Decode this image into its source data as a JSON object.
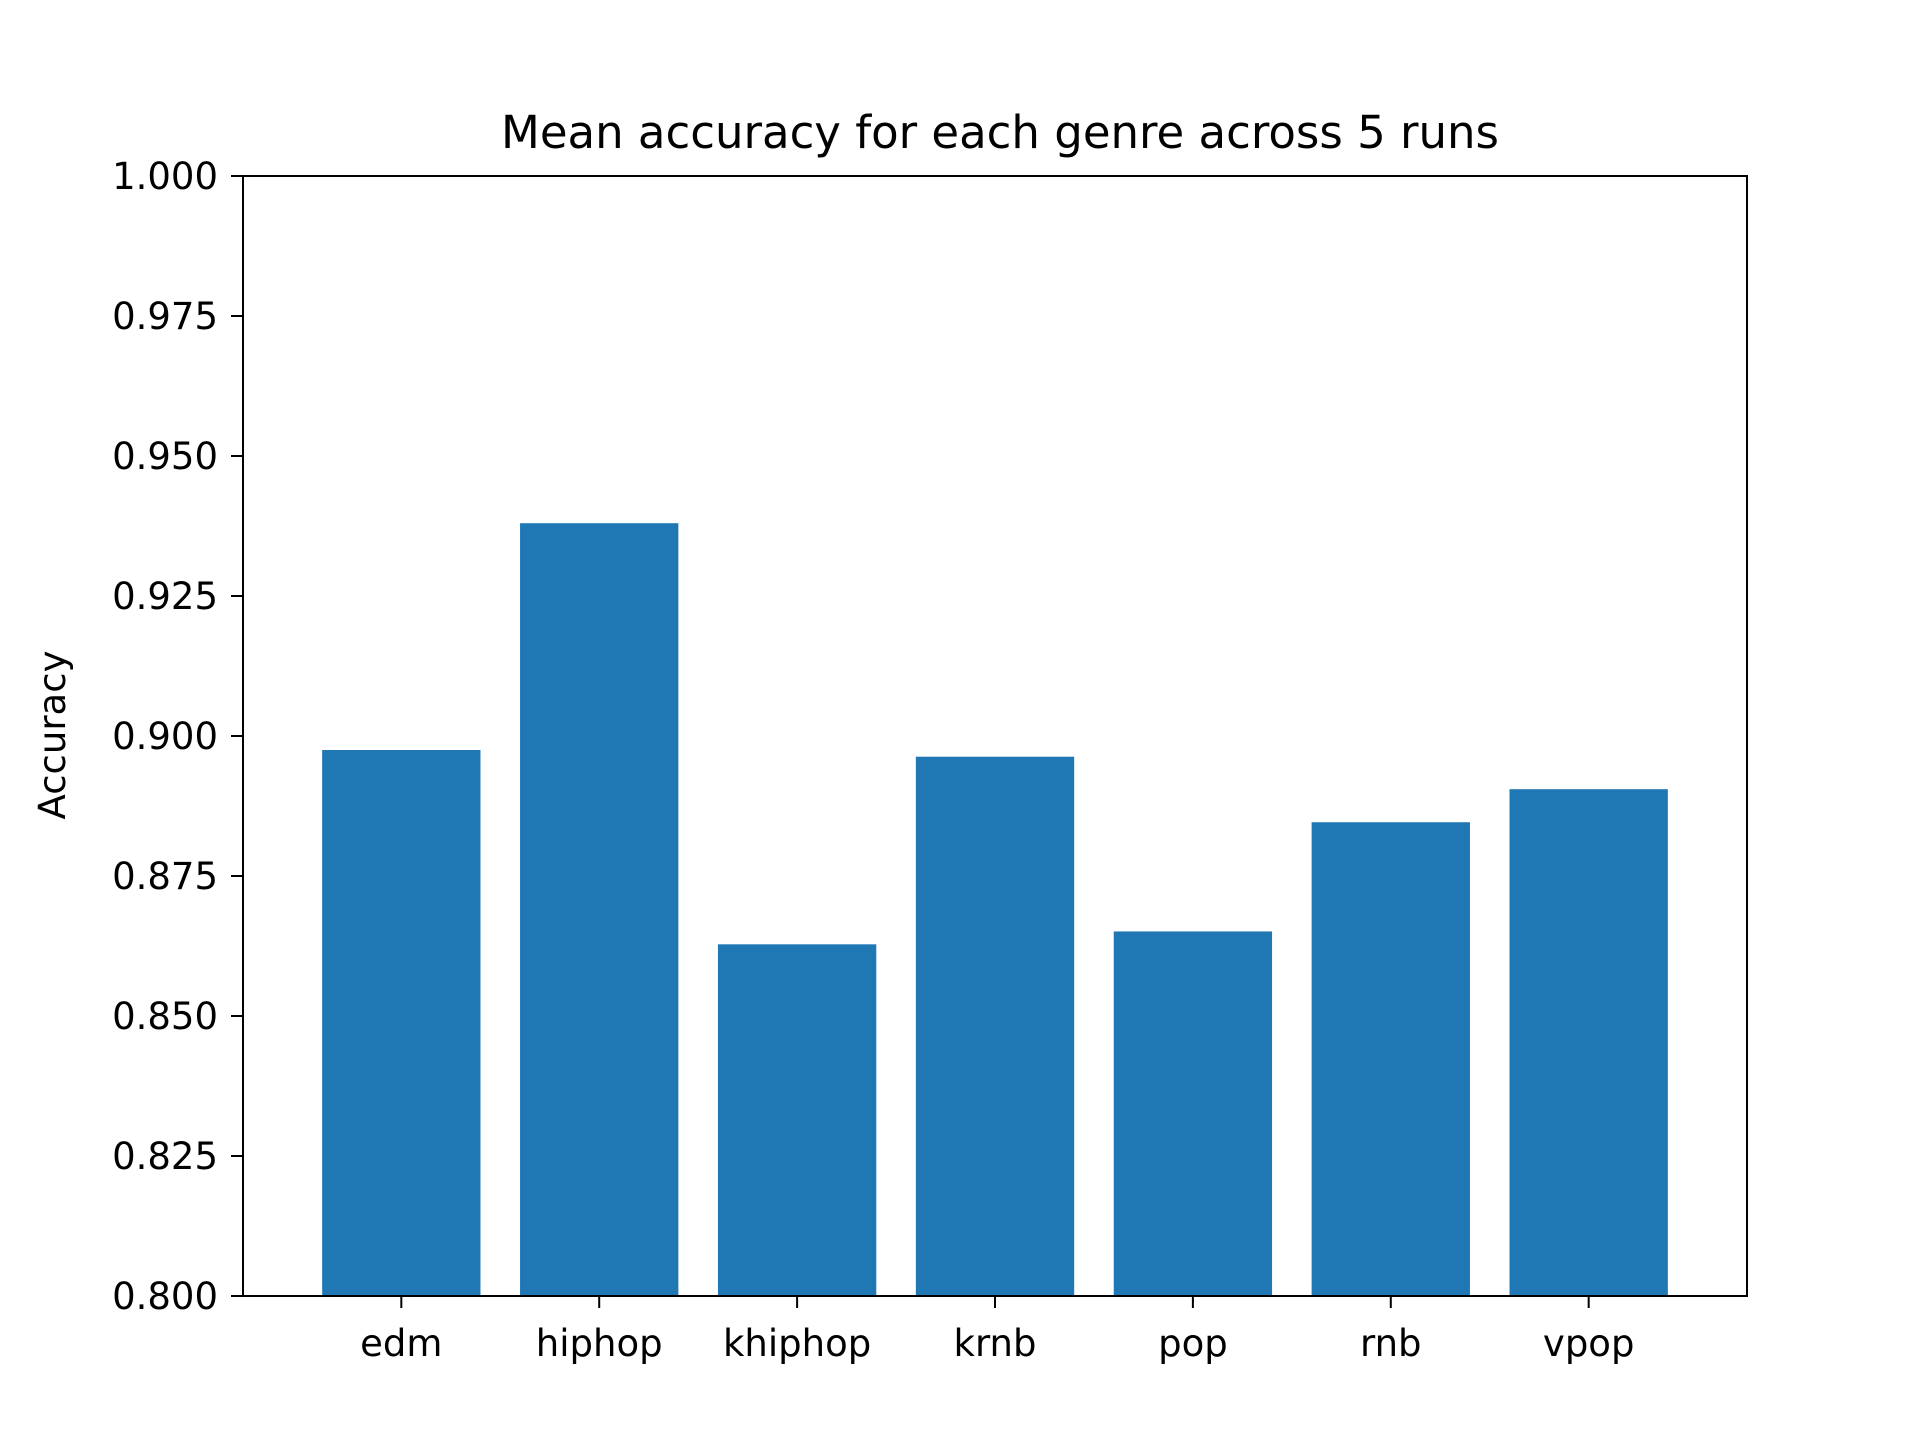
{
  "chart_data": {
    "type": "bar",
    "title": "Mean accuracy for each genre across 5 runs",
    "xlabel": "",
    "ylabel": "Accuracy",
    "categories": [
      "edm",
      "hiphop",
      "khiphop",
      "krnb",
      "pop",
      "rnb",
      "vpop"
    ],
    "values": [
      0.8975,
      0.938,
      0.8628,
      0.8963,
      0.8651,
      0.8846,
      0.8905
    ],
    "ylim": [
      0.8,
      1.0
    ],
    "yticks": [
      "0.800",
      "0.825",
      "0.850",
      "0.875",
      "0.900",
      "0.925",
      "0.950",
      "0.975",
      "1.000"
    ],
    "bar_color": "#1f77b4",
    "grid": false,
    "legend": "none"
  }
}
